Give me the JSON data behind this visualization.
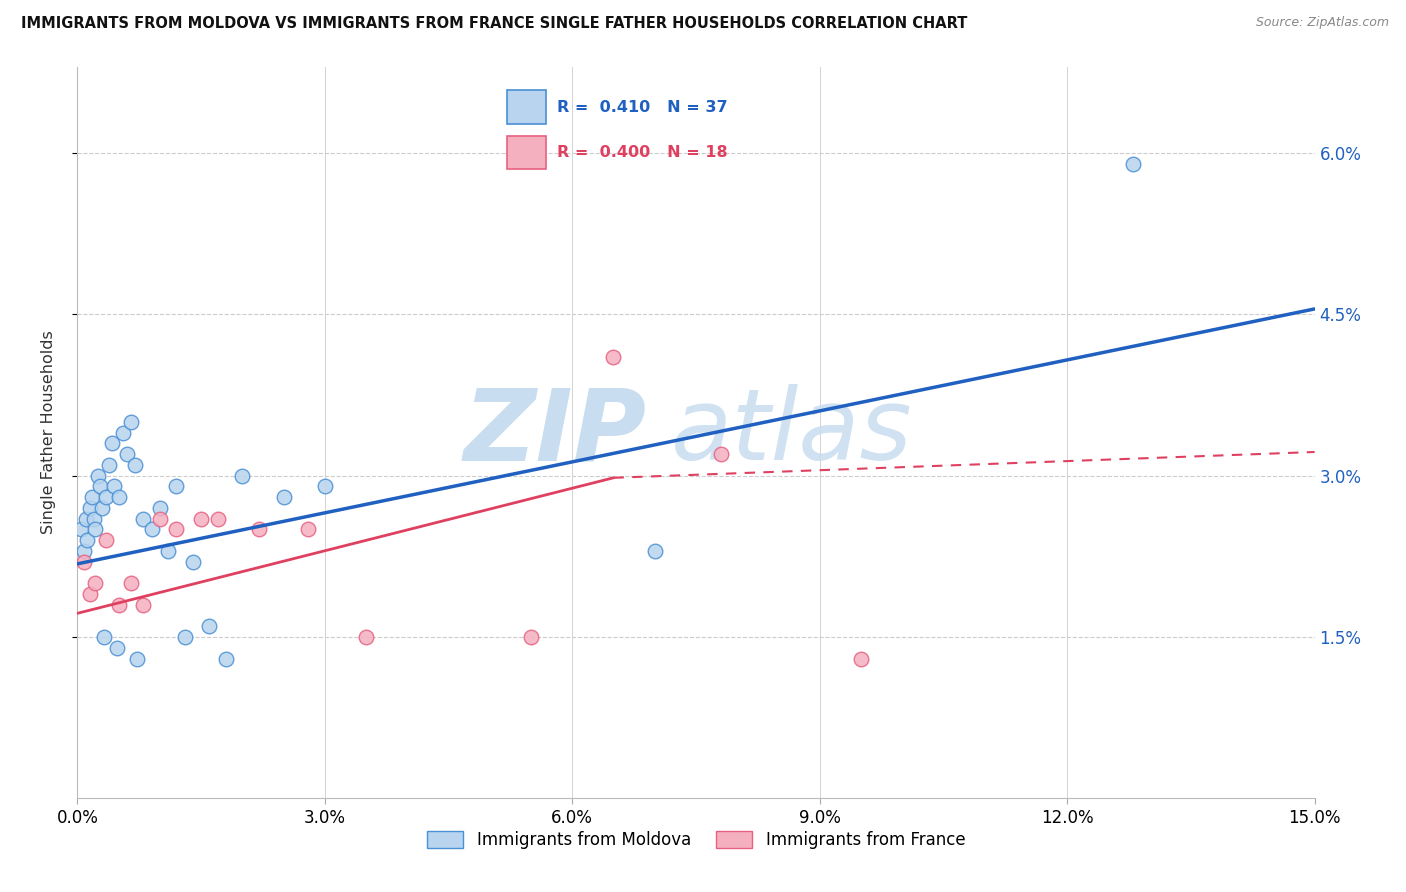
{
  "title": "IMMIGRANTS FROM MOLDOVA VS IMMIGRANTS FROM FRANCE SINGLE FATHER HOUSEHOLDS CORRELATION CHART",
  "source": "Source: ZipAtlas.com",
  "ylabel": "Single Father Households",
  "xlim": [
    0,
    15.0
  ],
  "ylim": [
    0.0,
    6.8
  ],
  "ytick_vals": [
    1.5,
    3.0,
    4.5,
    6.0
  ],
  "xtick_vals": [
    0,
    3,
    6,
    9,
    12,
    15
  ],
  "moldova_R": 0.41,
  "moldova_N": 37,
  "france_R": 0.4,
  "france_N": 18,
  "moldova_color": "#b8d4ee",
  "france_color": "#f5b0c0",
  "moldova_edge_color": "#4a90d4",
  "france_edge_color": "#e86080",
  "moldova_line_color": "#2060c0",
  "france_line_color": "#e04060",
  "background_color": "#ffffff",
  "grid_color": "#cccccc",
  "moldova_x": [
    0.05,
    0.08,
    0.1,
    0.12,
    0.15,
    0.18,
    0.2,
    0.22,
    0.25,
    0.28,
    0.3,
    0.35,
    0.38,
    0.42,
    0.45,
    0.5,
    0.55,
    0.6,
    0.65,
    0.7,
    0.8,
    0.9,
    1.0,
    1.1,
    1.2,
    1.4,
    1.6,
    2.0,
    2.5,
    3.0,
    0.32,
    0.48,
    0.72,
    1.3,
    1.8,
    7.0,
    12.8
  ],
  "moldova_y": [
    2.5,
    2.3,
    2.6,
    2.4,
    2.7,
    2.8,
    2.6,
    2.5,
    3.0,
    2.9,
    2.7,
    2.8,
    3.1,
    3.3,
    2.9,
    2.8,
    3.4,
    3.2,
    3.5,
    3.1,
    2.6,
    2.5,
    2.7,
    2.3,
    2.9,
    2.2,
    1.6,
    3.0,
    2.8,
    2.9,
    1.5,
    1.4,
    1.3,
    1.5,
    1.3,
    2.3,
    5.9
  ],
  "france_x": [
    0.08,
    0.15,
    0.22,
    0.35,
    0.5,
    0.65,
    0.8,
    1.0,
    1.2,
    1.5,
    1.7,
    2.2,
    2.8,
    3.5,
    5.5,
    6.5,
    7.8,
    9.5
  ],
  "france_y": [
    2.2,
    1.9,
    2.0,
    2.4,
    1.8,
    2.0,
    1.8,
    2.6,
    2.5,
    2.6,
    2.6,
    2.5,
    2.5,
    1.5,
    1.5,
    4.1,
    3.2,
    1.3
  ],
  "moldova_line_x0": 0.0,
  "moldova_line_y0": 2.18,
  "moldova_line_x1": 15.0,
  "moldova_line_y1": 4.55,
  "france_solid_x0": 0.0,
  "france_solid_y0": 1.72,
  "france_solid_x1": 6.5,
  "france_solid_y1": 2.98,
  "france_dash_x0": 6.5,
  "france_dash_y0": 2.98,
  "france_dash_x1": 15.0,
  "france_dash_y1": 3.22,
  "watermark_zip": "ZIP",
  "watermark_atlas": "atlas",
  "watermark_color": "#c8ddf0"
}
